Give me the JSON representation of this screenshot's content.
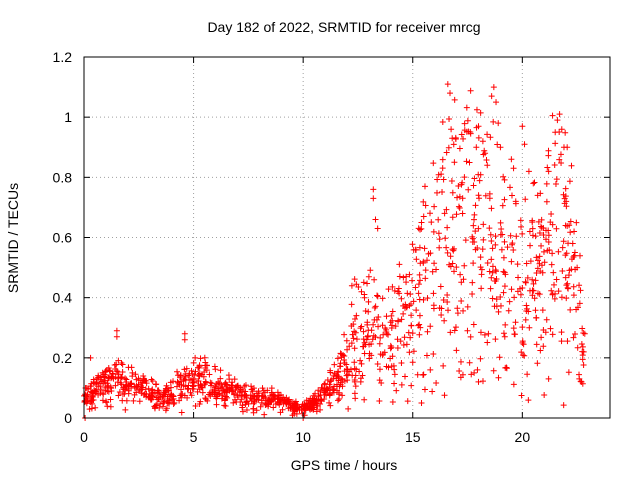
{
  "chart_data": {
    "type": "scatter",
    "title": "Day 182 of 2022, SRMTID for receiver mrcg",
    "xlabel": "GPS time / hours",
    "ylabel": "SRMTID / TECUs",
    "xlim": [
      0,
      24
    ],
    "ylim": [
      0,
      1.2
    ],
    "xticks": [
      0,
      5,
      10,
      15,
      20
    ],
    "xtick_labels": [
      "0",
      "5",
      "10",
      "15",
      "20"
    ],
    "yticks": [
      0,
      0.2,
      0.4,
      0.6,
      0.8,
      1,
      1.2
    ],
    "ytick_labels": [
      "0",
      "0.2",
      "0.4",
      "0.6",
      "0.8",
      "1",
      "1.2"
    ],
    "grid": true,
    "marker": "+",
    "marker_color": "#ff0000",
    "series_envelope": {
      "description": "approximate typical SRMTID level (TECUs) vs GPS hour",
      "x": [
        0,
        0.5,
        1,
        1.5,
        2,
        3,
        4,
        4.5,
        5,
        5.5,
        6,
        7,
        8,
        9,
        9.5,
        10,
        10.5,
        11,
        11.5,
        12,
        12.5,
        13,
        13.5,
        14,
        14.5,
        15,
        15.5,
        16,
        16.5,
        17,
        17.5,
        18,
        18.5,
        19,
        19.5,
        20,
        20.5,
        21,
        21.5,
        22,
        22.5,
        22.8
      ],
      "y": [
        0.06,
        0.09,
        0.11,
        0.13,
        0.11,
        0.09,
        0.07,
        0.12,
        0.12,
        0.13,
        0.1,
        0.08,
        0.07,
        0.06,
        0.04,
        0.03,
        0.05,
        0.08,
        0.12,
        0.18,
        0.28,
        0.3,
        0.22,
        0.25,
        0.28,
        0.35,
        0.45,
        0.5,
        0.55,
        0.55,
        0.6,
        0.58,
        0.52,
        0.48,
        0.45,
        0.42,
        0.45,
        0.55,
        0.65,
        0.6,
        0.35,
        0.25
      ]
    },
    "points": [
      [
        0.05,
        0.0
      ],
      [
        0.3,
        0.2
      ],
      [
        1.5,
        0.29
      ],
      [
        1.5,
        0.27
      ],
      [
        4.6,
        0.28
      ],
      [
        4.6,
        0.26
      ],
      [
        10.0,
        0.0
      ],
      [
        13.2,
        0.76
      ],
      [
        13.2,
        0.73
      ],
      [
        13.3,
        0.66
      ],
      [
        13.4,
        0.63
      ],
      [
        14.7,
        0.47
      ],
      [
        15.4,
        0.65
      ],
      [
        15.5,
        0.67
      ],
      [
        16.6,
        1.11
      ],
      [
        16.7,
        1.08
      ],
      [
        16.75,
        0.96
      ],
      [
        16.8,
        0.93
      ],
      [
        16.9,
        0.85
      ],
      [
        17.9,
        0.9
      ],
      [
        18.0,
        0.97
      ],
      [
        18.2,
        0.92
      ],
      [
        18.3,
        0.88
      ],
      [
        18.4,
        0.84
      ],
      [
        18.6,
        1.07
      ],
      [
        18.7,
        1.1
      ],
      [
        18.8,
        1.05
      ],
      [
        18.9,
        0.98
      ],
      [
        19.0,
        0.9
      ],
      [
        19.5,
        0.86
      ],
      [
        19.6,
        0.83
      ],
      [
        19.7,
        0.72
      ],
      [
        20.0,
        0.97
      ],
      [
        20.1,
        0.91
      ],
      [
        20.3,
        0.82
      ],
      [
        20.5,
        0.78
      ],
      [
        20.7,
        0.74
      ],
      [
        21.2,
        0.82
      ],
      [
        21.5,
        0.95
      ],
      [
        21.6,
        0.99
      ],
      [
        21.7,
        1.01
      ],
      [
        21.8,
        0.96
      ],
      [
        21.9,
        0.9
      ],
      [
        22.0,
        0.72
      ],
      [
        22.3,
        0.58
      ],
      [
        22.4,
        0.55
      ],
      [
        22.5,
        0.5
      ],
      [
        22.6,
        0.13
      ],
      [
        22.7,
        0.12
      ],
      [
        22.8,
        0.22
      ],
      [
        22.85,
        0.28
      ],
      [
        15.8,
        0.16
      ],
      [
        17.8,
        0.15
      ],
      [
        18.0,
        0.12
      ],
      [
        21.2,
        0.13
      ],
      [
        15.4,
        0.05
      ],
      [
        19.2,
        0.27
      ]
    ]
  }
}
